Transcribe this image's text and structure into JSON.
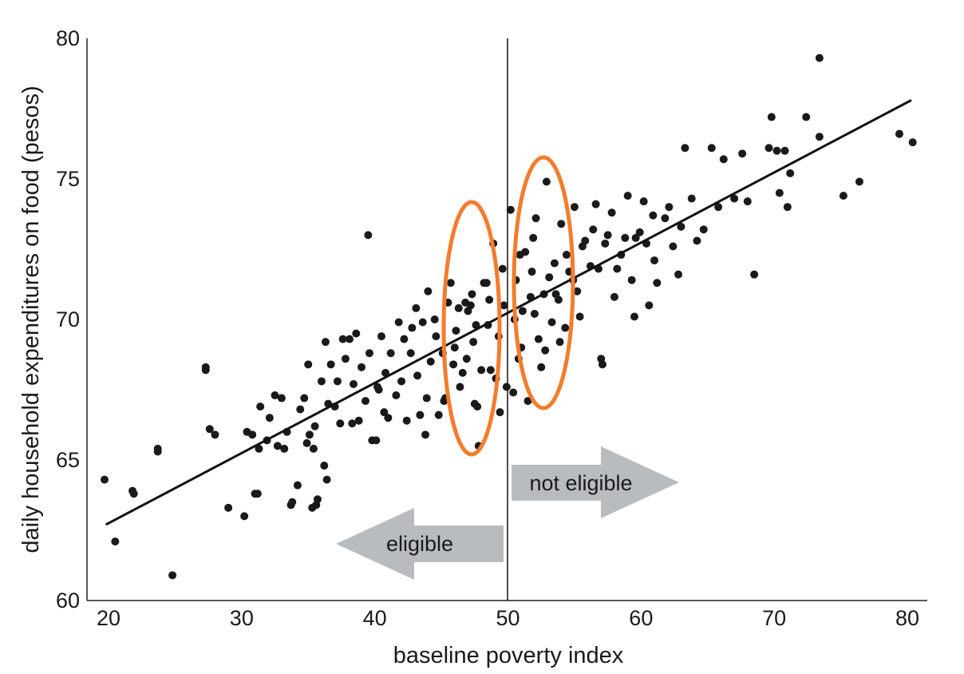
{
  "chart_data": {
    "type": "scatter",
    "title": "",
    "xlabel": "baseline poverty index",
    "ylabel": "daily household expenditures on food (pesos)",
    "xlim": [
      19,
      81
    ],
    "ylim": [
      60,
      80
    ],
    "x_ticks": [
      "20",
      "30",
      "40",
      "50",
      "60",
      "70",
      "80"
    ],
    "y_ticks": [
      "60",
      "65",
      "70",
      "75",
      "80"
    ],
    "grid": false,
    "cutoff": 50,
    "fit_line": {
      "x": [
        19.8,
        80.3
      ],
      "y": [
        62.7,
        77.8
      ]
    },
    "annotations": {
      "eligible": "eligible",
      "not_eligible": "not eligible"
    },
    "colors": {
      "points": "#1a1a1a",
      "ellipse": "#f47c2c",
      "arrow": "#b9bcbf",
      "line": "#111111"
    },
    "points": [
      [
        19.7,
        64.3
      ],
      [
        20.5,
        62.1
      ],
      [
        21.8,
        63.9
      ],
      [
        21.9,
        63.8
      ],
      [
        23.7,
        65.4
      ],
      [
        23.7,
        65.3
      ],
      [
        24.8,
        60.9
      ],
      [
        27.3,
        68.3
      ],
      [
        27.3,
        68.2
      ],
      [
        27.6,
        66.1
      ],
      [
        28.0,
        65.9
      ],
      [
        29.0,
        63.3
      ],
      [
        30.2,
        63.0
      ],
      [
        30.4,
        66.0
      ],
      [
        31.0,
        63.8
      ],
      [
        31.2,
        63.8
      ],
      [
        31.3,
        65.4
      ],
      [
        31.4,
        66.9
      ],
      [
        32.1,
        66.5
      ],
      [
        32.5,
        67.3
      ],
      [
        33.0,
        67.2
      ],
      [
        33.2,
        65.4
      ],
      [
        33.7,
        63.4
      ],
      [
        33.8,
        63.5
      ],
      [
        34.2,
        64.1
      ],
      [
        34.7,
        67.2
      ],
      [
        35.0,
        68.4
      ],
      [
        35.1,
        65.9
      ],
      [
        35.3,
        63.3
      ],
      [
        35.4,
        65.4
      ],
      [
        35.6,
        63.4
      ],
      [
        35.7,
        63.6
      ],
      [
        36.0,
        67.8
      ],
      [
        36.2,
        64.8
      ],
      [
        36.3,
        69.2
      ],
      [
        36.4,
        64.3
      ],
      [
        37.0,
        66.9
      ],
      [
        37.2,
        67.8
      ],
      [
        37.8,
        68.6
      ],
      [
        38.1,
        69.3
      ],
      [
        38.4,
        67.7
      ],
      [
        38.8,
        66.4
      ],
      [
        39.0,
        68.3
      ],
      [
        39.3,
        67.1
      ],
      [
        39.5,
        73.0
      ],
      [
        39.6,
        68.8
      ],
      [
        40.1,
        65.7
      ],
      [
        40.3,
        67.5
      ],
      [
        40.7,
        66.7
      ],
      [
        40.8,
        68.1
      ],
      [
        41.0,
        66.5
      ],
      [
        41.2,
        68.8
      ],
      [
        41.6,
        67.3
      ],
      [
        42.2,
        69.3
      ],
      [
        42.4,
        66.4
      ],
      [
        42.8,
        69.7
      ],
      [
        43.2,
        68.0
      ],
      [
        43.4,
        66.6
      ],
      [
        43.6,
        69.9
      ],
      [
        43.9,
        67.2
      ],
      [
        44.2,
        68.5
      ],
      [
        44.5,
        70.0
      ],
      [
        44.8,
        66.6
      ],
      [
        45.1,
        68.8
      ],
      [
        45.3,
        67.2
      ],
      [
        45.5,
        70.6
      ],
      [
        45.7,
        71.3
      ],
      [
        45.9,
        68.4
      ],
      [
        46.1,
        69.6
      ],
      [
        46.3,
        70.4
      ],
      [
        46.4,
        67.6
      ],
      [
        46.6,
        68.1
      ],
      [
        46.8,
        70.6
      ],
      [
        47.0,
        70.3
      ],
      [
        47.2,
        70.5
      ],
      [
        47.4,
        69.2
      ],
      [
        47.5,
        67.0
      ],
      [
        47.7,
        66.9
      ],
      [
        47.8,
        65.5
      ],
      [
        48.0,
        68.2
      ],
      [
        48.2,
        71.3
      ],
      [
        48.5,
        69.8
      ],
      [
        48.7,
        68.2
      ],
      [
        48.9,
        72.7
      ],
      [
        49.1,
        67.9
      ],
      [
        49.4,
        66.7
      ],
      [
        49.6,
        71.8
      ],
      [
        49.9,
        67.6
      ],
      [
        50.2,
        73.9
      ],
      [
        50.4,
        67.4
      ],
      [
        50.6,
        71.4
      ],
      [
        50.8,
        68.6
      ],
      [
        51.1,
        70.3
      ],
      [
        51.3,
        72.4
      ],
      [
        51.5,
        67.1
      ],
      [
        51.7,
        70.8
      ],
      [
        51.9,
        72.9
      ],
      [
        52.1,
        73.6
      ],
      [
        52.3,
        69.3
      ],
      [
        52.5,
        68.3
      ],
      [
        52.7,
        70.9
      ],
      [
        52.9,
        74.9
      ],
      [
        53.1,
        71.5
      ],
      [
        53.3,
        69.9
      ],
      [
        53.5,
        72.0
      ],
      [
        53.8,
        70.7
      ],
      [
        54.0,
        73.4
      ],
      [
        54.3,
        69.7
      ],
      [
        54.6,
        71.7
      ],
      [
        55.0,
        74.0
      ],
      [
        55.4,
        70.1
      ],
      [
        55.8,
        72.8
      ],
      [
        56.2,
        71.9
      ],
      [
        56.6,
        74.1
      ],
      [
        57.0,
        68.6
      ],
      [
        57.1,
        68.4
      ],
      [
        57.5,
        73.0
      ],
      [
        58.0,
        70.8
      ],
      [
        58.5,
        72.3
      ],
      [
        59.0,
        74.4
      ],
      [
        59.5,
        70.1
      ],
      [
        59.6,
        72.9
      ],
      [
        60.2,
        74.2
      ],
      [
        60.6,
        70.5
      ],
      [
        61.2,
        71.3
      ],
      [
        61.8,
        73.6
      ],
      [
        62.4,
        72.6
      ],
      [
        63.0,
        73.3
      ],
      [
        63.3,
        76.1
      ],
      [
        63.8,
        74.3
      ],
      [
        64.2,
        72.8
      ],
      [
        65.3,
        76.1
      ],
      [
        66.2,
        75.7
      ],
      [
        67.6,
        75.9
      ],
      [
        68.5,
        71.6
      ],
      [
        69.6,
        76.1
      ],
      [
        69.8,
        77.2
      ],
      [
        70.2,
        76.0
      ],
      [
        70.8,
        76.0
      ],
      [
        71.2,
        75.2
      ],
      [
        72.4,
        77.2
      ],
      [
        73.4,
        79.3
      ],
      [
        73.4,
        76.5
      ],
      [
        75.2,
        74.4
      ],
      [
        76.4,
        74.9
      ],
      [
        79.4,
        76.6
      ],
      [
        80.4,
        76.3
      ],
      [
        47.3,
        70.9
      ],
      [
        46.0,
        69.0
      ],
      [
        48.6,
        70.7
      ],
      [
        44.0,
        71.0
      ],
      [
        43.1,
        70.4
      ],
      [
        42.7,
        68.8
      ],
      [
        41.8,
        69.9
      ],
      [
        40.5,
        69.4
      ],
      [
        38.6,
        69.5
      ],
      [
        37.4,
        66.3
      ],
      [
        36.7,
        68.4
      ],
      [
        35.5,
        66.2
      ],
      [
        34.4,
        66.8
      ],
      [
        33.4,
        66.0
      ],
      [
        32.7,
        65.5
      ],
      [
        31.9,
        65.7
      ],
      [
        30.8,
        65.9
      ],
      [
        52.0,
        70.2
      ],
      [
        53.6,
        70.9
      ],
      [
        54.9,
        71.4
      ],
      [
        55.6,
        72.6
      ],
      [
        56.8,
        71.8
      ],
      [
        57.8,
        73.8
      ],
      [
        58.8,
        72.9
      ],
      [
        59.9,
        73.1
      ],
      [
        61.0,
        72.1
      ],
      [
        62.1,
        74.0
      ],
      [
        64.7,
        73.2
      ],
      [
        67.0,
        74.3
      ],
      [
        51.0,
        69.0
      ],
      [
        50.9,
        72.3
      ],
      [
        52.8,
        68.9
      ],
      [
        53.9,
        69.2
      ],
      [
        49.3,
        69.4
      ],
      [
        48.4,
        71.3
      ],
      [
        46.9,
        68.6
      ],
      [
        45.2,
        67.1
      ],
      [
        44.6,
        69.4
      ],
      [
        43.8,
        65.9
      ],
      [
        42.0,
        67.8
      ],
      [
        40.2,
        67.6
      ],
      [
        39.8,
        65.7
      ],
      [
        38.3,
        66.3
      ],
      [
        37.6,
        69.3
      ],
      [
        36.5,
        67.0
      ],
      [
        34.9,
        65.6
      ],
      [
        56.4,
        73.2
      ],
      [
        57.3,
        72.7
      ],
      [
        59.3,
        71.4
      ],
      [
        60.9,
        73.7
      ],
      [
        62.8,
        71.6
      ],
      [
        65.8,
        74.0
      ],
      [
        68.0,
        74.2
      ],
      [
        70.4,
        74.5
      ],
      [
        71.0,
        74.0
      ],
      [
        47.6,
        69.8
      ],
      [
        49.7,
        70.5
      ],
      [
        50.5,
        70.0
      ],
      [
        51.8,
        71.7
      ],
      [
        54.4,
        72.3
      ],
      [
        55.2,
        71.0
      ],
      [
        58.2,
        71.8
      ],
      [
        60.4,
        72.7
      ]
    ]
  }
}
